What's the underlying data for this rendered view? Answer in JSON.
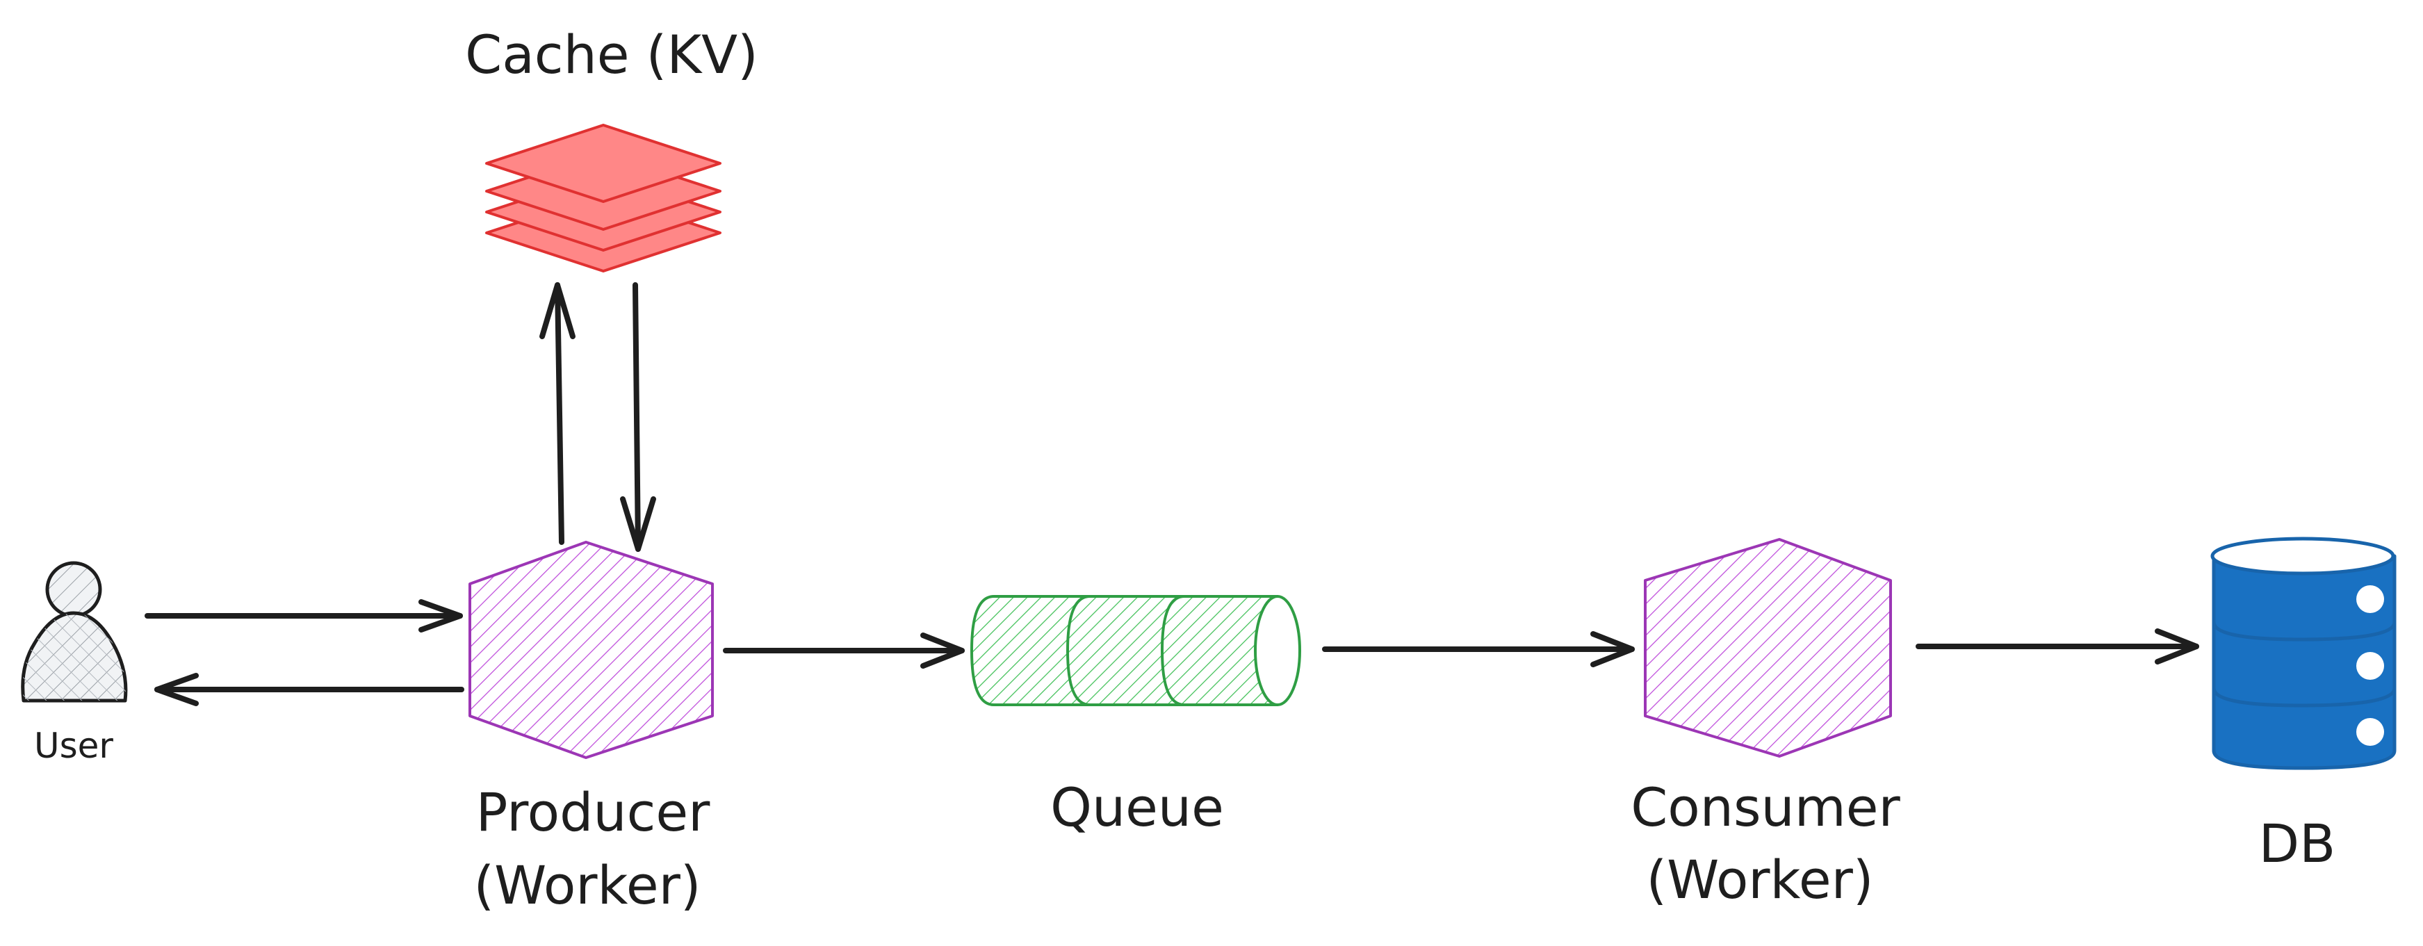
{
  "nodes": {
    "user": {
      "label": "User"
    },
    "cache": {
      "label": "Cache (KV)"
    },
    "producer": {
      "label_line1": "Producer",
      "label_line2": "(Worker)"
    },
    "queue": {
      "label": "Queue"
    },
    "consumer": {
      "label_line1": "Consumer",
      "label_line2": "(Worker)"
    },
    "db": {
      "label": "DB"
    }
  },
  "colors": {
    "stroke": "#1e1e1e",
    "user_fill": "#e9ecef",
    "cache_fill": "#ff8787",
    "cache_stroke": "#e03131",
    "worker_stroke": "#9c36b5",
    "queue_stroke": "#2f9e44",
    "db_fill": "#1971c2",
    "db_stroke": "#1864ab"
  },
  "edges": [
    {
      "from": "user",
      "to": "producer"
    },
    {
      "from": "producer",
      "to": "user"
    },
    {
      "from": "producer",
      "to": "cache"
    },
    {
      "from": "cache",
      "to": "producer"
    },
    {
      "from": "producer",
      "to": "queue"
    },
    {
      "from": "queue",
      "to": "consumer"
    },
    {
      "from": "consumer",
      "to": "db"
    }
  ]
}
